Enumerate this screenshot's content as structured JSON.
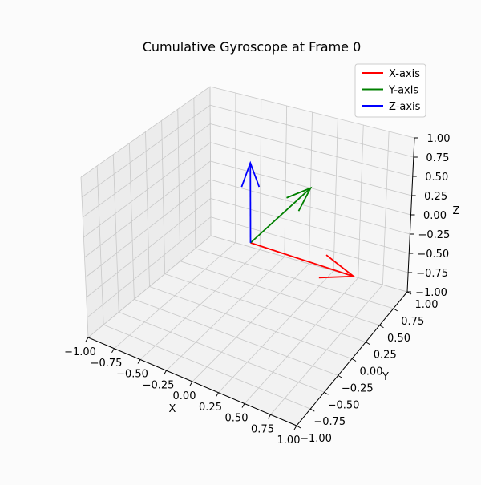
{
  "chart_data": {
    "type": "3d-quiver",
    "title": "Cumulative Gyroscope at Frame 0",
    "xlabel": "X",
    "ylabel": "Y",
    "zlabel": "Z",
    "xlim": [
      -1,
      1
    ],
    "ylim": [
      -1,
      1
    ],
    "zlim": [
      -1,
      1
    ],
    "ticks": [
      -1.0,
      -0.75,
      -0.5,
      -0.25,
      0.0,
      0.25,
      0.5,
      0.75,
      1.0
    ],
    "tick_labels": [
      "−1.00",
      "−0.75",
      "−0.50",
      "−0.25",
      "0.00",
      "0.25",
      "0.50",
      "0.75",
      "1.00"
    ],
    "grid": true,
    "legend_position": "top-right",
    "origin": [
      0,
      0,
      0
    ],
    "series": [
      {
        "name": "X-axis",
        "color": "#ff0000",
        "vector": [
          1,
          0,
          0
        ]
      },
      {
        "name": "Y-axis",
        "color": "#008000",
        "vector": [
          0,
          1,
          0
        ]
      },
      {
        "name": "Z-axis",
        "color": "#0000ff",
        "vector": [
          0,
          0,
          1
        ]
      }
    ]
  }
}
